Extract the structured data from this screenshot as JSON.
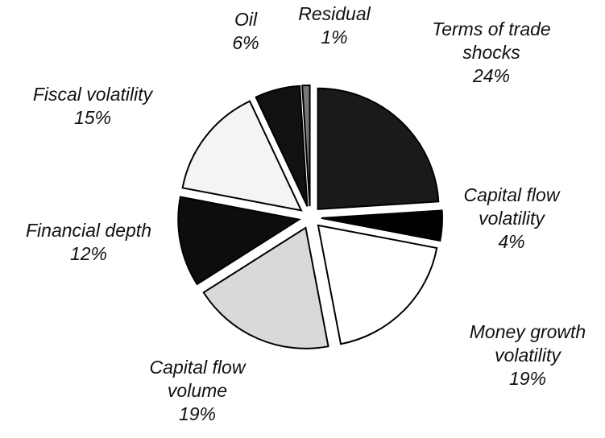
{
  "chart_data": {
    "type": "pie",
    "categories": [
      "Terms of trade shocks",
      "Capital flow volatility",
      "Money growth volatility",
      "Capital flow volume",
      "Financial depth",
      "Fiscal volatility",
      "Oil",
      "Residual"
    ],
    "values": [
      24,
      4,
      19,
      19,
      12,
      15,
      6,
      1
    ],
    "value_labels": [
      "24%",
      "4%",
      "19%",
      "19%",
      "12%",
      "15%",
      "6%",
      "1%"
    ],
    "colors": [
      "#1a1a1a",
      "#000000",
      "#ffffff",
      "#d9d9d9",
      "#0d0d0d",
      "#f4f4f4",
      "#111111",
      "#777777"
    ]
  }
}
